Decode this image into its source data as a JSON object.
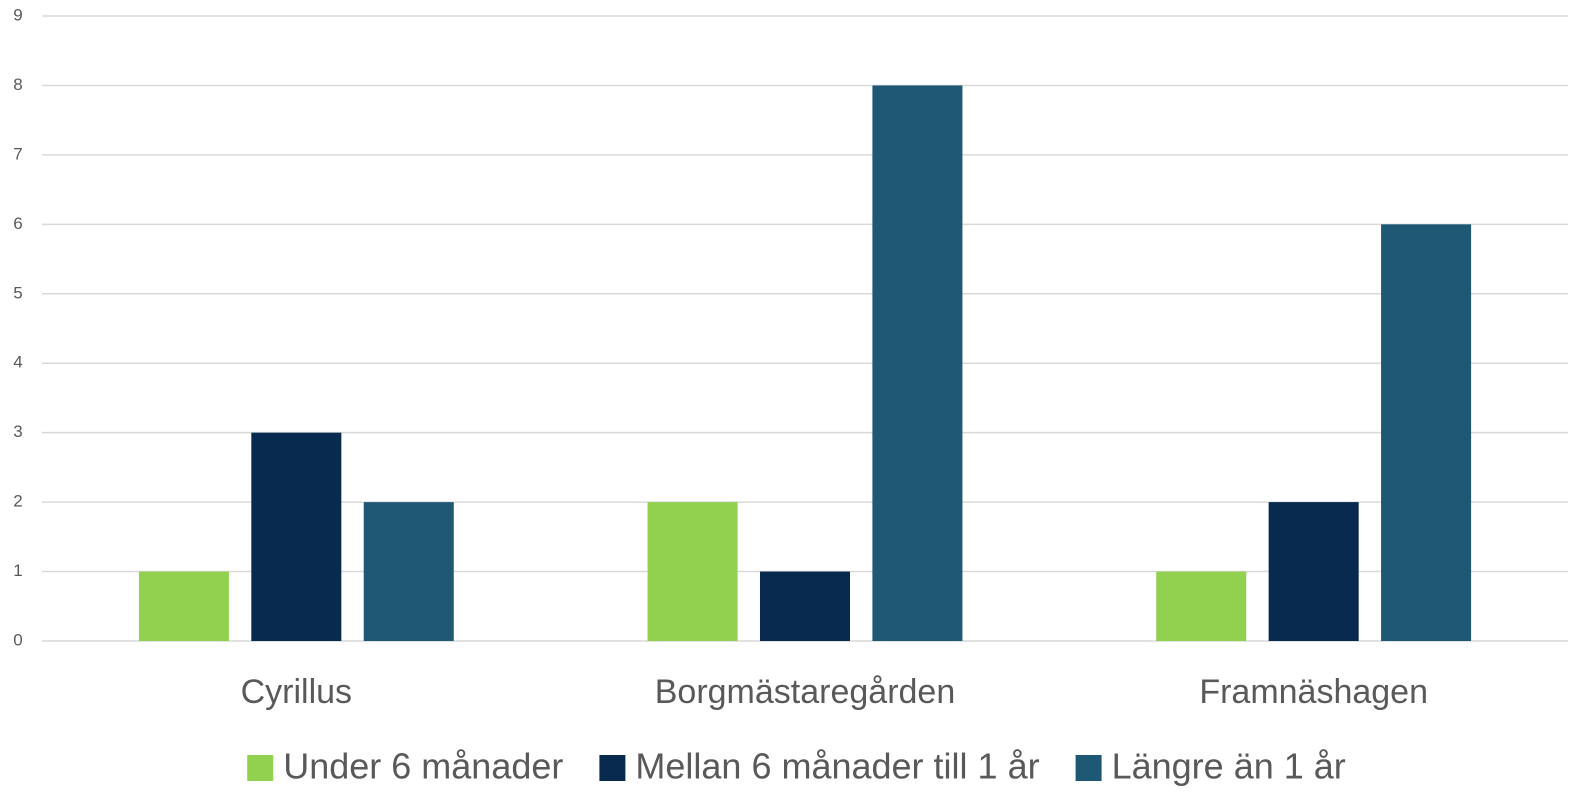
{
  "chart_data": {
    "type": "bar",
    "categories": [
      "Cyrillus",
      "Borgmästaregården",
      "Framnäshagen"
    ],
    "series": [
      {
        "name": "Under 6 månader",
        "color": "#92d050",
        "values": [
          1,
          2,
          1
        ]
      },
      {
        "name": "Mellan 6 månader till 1 år",
        "color": "#072a4e",
        "values": [
          3,
          1,
          2
        ]
      },
      {
        "name": "Längre än 1 år",
        "color": "#1f5874",
        "values": [
          2,
          8,
          6
        ]
      }
    ],
    "ylim": [
      0,
      9
    ],
    "yticks": [
      0,
      1,
      2,
      3,
      4,
      5,
      6,
      7,
      8,
      9
    ],
    "grid": true,
    "legend": "bottom"
  }
}
